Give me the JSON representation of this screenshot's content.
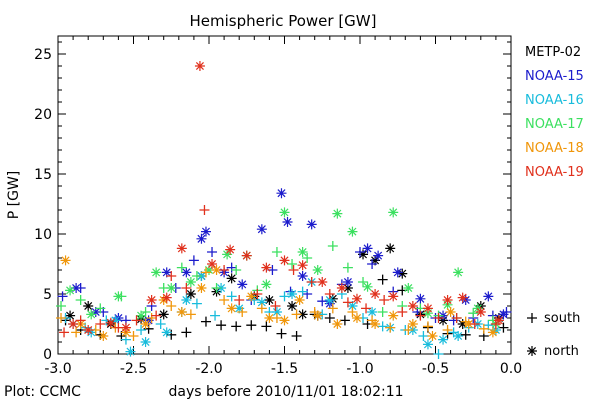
{
  "chart_data": {
    "type": "scatter",
    "title": "Hemispheric Power [GW]",
    "xlabel": "days before 2010/11/01 18:02:11",
    "ylabel": "P [GW]",
    "footer": "Plot: CCMC",
    "xlim": [
      -3.0,
      0.0
    ],
    "ylim": [
      0,
      26.5
    ],
    "x_ticks": [
      "-3.0",
      "-2.5",
      "-2.0",
      "-1.5",
      "-1.0",
      "-0.5",
      "0.0"
    ],
    "y_ticks": [
      "0",
      "5",
      "10",
      "15",
      "20",
      "25"
    ],
    "grid": false,
    "legend_position": "right",
    "marker_legend": [
      {
        "symbol": "+",
        "label": "south"
      },
      {
        "symbol": "*",
        "label": "north"
      }
    ],
    "series": [
      {
        "name": "METP-02",
        "color": "#000000",
        "north": [
          [
            -2.92,
            3.2
          ],
          [
            -2.8,
            4.0
          ],
          [
            -2.65,
            2.5
          ],
          [
            -2.45,
            2.9
          ],
          [
            -2.3,
            3.3
          ],
          [
            -2.12,
            5.0
          ],
          [
            -2.05,
            6.5
          ],
          [
            -1.95,
            5.2
          ],
          [
            -1.85,
            6.3
          ],
          [
            -1.7,
            4.8
          ],
          [
            -1.6,
            4.5
          ],
          [
            -1.45,
            4.0
          ],
          [
            -1.38,
            3.3
          ],
          [
            -1.28,
            3.2
          ],
          [
            -1.18,
            4.6
          ],
          [
            -1.08,
            5.5
          ],
          [
            -0.98,
            8.3
          ],
          [
            -0.9,
            7.8
          ],
          [
            -0.8,
            8.8
          ],
          [
            -0.72,
            6.7
          ],
          [
            -0.6,
            3.3
          ],
          [
            -0.45,
            2.8
          ],
          [
            -0.32,
            2.5
          ],
          [
            -0.2,
            4.0
          ],
          [
            -0.08,
            3.0
          ]
        ],
        "south": [
          [
            -2.95,
            2.8
          ],
          [
            -2.85,
            2.0
          ],
          [
            -2.72,
            1.6
          ],
          [
            -2.58,
            1.5
          ],
          [
            -2.4,
            2.1
          ],
          [
            -2.25,
            1.6
          ],
          [
            -2.15,
            1.8
          ],
          [
            -2.02,
            2.7
          ],
          [
            -1.92,
            2.4
          ],
          [
            -1.82,
            2.3
          ],
          [
            -1.72,
            2.4
          ],
          [
            -1.62,
            2.3
          ],
          [
            -1.52,
            1.7
          ],
          [
            -1.42,
            1.5
          ],
          [
            -1.3,
            3.3
          ],
          [
            -1.2,
            3.0
          ],
          [
            -1.1,
            2.8
          ],
          [
            -0.95,
            2.5
          ],
          [
            -0.85,
            6.2
          ],
          [
            -0.72,
            5.3
          ],
          [
            -0.55,
            2.2
          ],
          [
            -0.42,
            1.7
          ],
          [
            -0.3,
            1.6
          ],
          [
            -0.18,
            1.5
          ],
          [
            -0.05,
            2.2
          ]
        ]
      },
      {
        "name": "NOAA-15",
        "color": "#1c1ccc",
        "north": [
          [
            -2.88,
            5.5
          ],
          [
            -2.75,
            3.5
          ],
          [
            -2.6,
            3.0
          ],
          [
            -2.4,
            2.8
          ],
          [
            -2.28,
            6.8
          ],
          [
            -2.15,
            6.8
          ],
          [
            -2.05,
            9.6
          ],
          [
            -2.02,
            10.2
          ],
          [
            -1.9,
            6.8
          ],
          [
            -1.78,
            5.8
          ],
          [
            -1.65,
            10.4
          ],
          [
            -1.52,
            13.4
          ],
          [
            -1.48,
            11.0
          ],
          [
            -1.38,
            6.5
          ],
          [
            -1.32,
            10.8
          ],
          [
            -1.2,
            4.2
          ],
          [
            -1.08,
            6.0
          ],
          [
            -0.95,
            8.8
          ],
          [
            -0.88,
            8.2
          ],
          [
            -0.75,
            6.8
          ],
          [
            -0.6,
            4.6
          ],
          [
            -0.45,
            3.2
          ],
          [
            -0.3,
            4.5
          ],
          [
            -0.15,
            4.8
          ],
          [
            -0.05,
            3.3
          ]
        ],
        "south": [
          [
            -2.97,
            4.8
          ],
          [
            -2.85,
            5.5
          ],
          [
            -2.7,
            3.5
          ],
          [
            -2.55,
            2.8
          ],
          [
            -2.38,
            4.0
          ],
          [
            -2.22,
            5.5
          ],
          [
            -2.1,
            7.8
          ],
          [
            -1.98,
            8.5
          ],
          [
            -1.85,
            7.2
          ],
          [
            -1.72,
            4.5
          ],
          [
            -1.58,
            7.0
          ],
          [
            -1.46,
            5.2
          ],
          [
            -1.35,
            5.0
          ],
          [
            -1.25,
            4.4
          ],
          [
            -1.12,
            5.8
          ],
          [
            -1.0,
            8.5
          ],
          [
            -0.92,
            7.5
          ],
          [
            -0.78,
            5.2
          ],
          [
            -0.62,
            3.5
          ],
          [
            -0.5,
            3.0
          ],
          [
            -0.38,
            2.8
          ],
          [
            -0.25,
            3.0
          ],
          [
            -0.12,
            3.2
          ],
          [
            -0.03,
            3.5
          ]
        ]
      },
      {
        "name": "NOAA-16",
        "color": "#18bcdc",
        "north": [
          [
            -2.9,
            2.5
          ],
          [
            -2.78,
            1.8
          ],
          [
            -2.62,
            2.8
          ],
          [
            -2.52,
            0.2
          ],
          [
            -2.42,
            1.0
          ],
          [
            -2.28,
            1.8
          ],
          [
            -2.15,
            4.5
          ],
          [
            -2.05,
            6.5
          ],
          [
            -1.92,
            5.5
          ],
          [
            -1.8,
            3.8
          ],
          [
            -1.65,
            4.3
          ],
          [
            -1.55,
            3.5
          ],
          [
            -1.45,
            5.0
          ],
          [
            -1.32,
            6.0
          ],
          [
            -1.2,
            4.5
          ],
          [
            -1.05,
            4.0
          ],
          [
            -0.92,
            3.5
          ],
          [
            -0.8,
            2.2
          ],
          [
            -0.65,
            2.0
          ],
          [
            -0.55,
            0.8
          ],
          [
            -0.45,
            1.2
          ],
          [
            -0.35,
            1.5
          ],
          [
            -0.22,
            2.5
          ],
          [
            -0.1,
            2.0
          ]
        ],
        "south": [
          [
            -2.95,
            3.0
          ],
          [
            -2.82,
            2.2
          ],
          [
            -2.68,
            2.8
          ],
          [
            -2.55,
            1.2
          ],
          [
            -2.45,
            2.0
          ],
          [
            -2.32,
            2.5
          ],
          [
            -2.18,
            3.5
          ],
          [
            -2.08,
            4.2
          ],
          [
            -1.96,
            3.2
          ],
          [
            -1.85,
            4.8
          ],
          [
            -1.7,
            4.5
          ],
          [
            -1.6,
            3.5
          ],
          [
            -1.5,
            4.8
          ],
          [
            -1.38,
            5.2
          ],
          [
            -1.25,
            3.3
          ],
          [
            -1.12,
            5.0
          ],
          [
            -0.98,
            3.0
          ],
          [
            -0.85,
            2.3
          ],
          [
            -0.7,
            2.0
          ],
          [
            -0.58,
            1.5
          ],
          [
            -0.48,
            0.0
          ],
          [
            -0.38,
            1.8
          ],
          [
            -0.28,
            2.2
          ],
          [
            -0.15,
            2.4
          ]
        ]
      },
      {
        "name": "NOAA-17",
        "color": "#3ce060",
        "north": [
          [
            -2.92,
            5.3
          ],
          [
            -2.78,
            3.3
          ],
          [
            -2.6,
            4.8
          ],
          [
            -2.45,
            3.2
          ],
          [
            -2.35,
            6.8
          ],
          [
            -2.25,
            5.5
          ],
          [
            -2.12,
            6.0
          ],
          [
            -2.0,
            7.0
          ],
          [
            -1.88,
            8.3
          ],
          [
            -1.75,
            8.2
          ],
          [
            -1.62,
            5.8
          ],
          [
            -1.5,
            11.8
          ],
          [
            -1.38,
            8.5
          ],
          [
            -1.28,
            7.0
          ],
          [
            -1.15,
            11.7
          ],
          [
            -1.05,
            10.2
          ],
          [
            -0.95,
            5.6
          ],
          [
            -0.78,
            11.8
          ],
          [
            -0.68,
            5.5
          ],
          [
            -0.55,
            3.4
          ],
          [
            -0.42,
            4.1
          ],
          [
            -0.35,
            6.8
          ],
          [
            -0.22,
            3.8
          ],
          [
            -0.1,
            2.5
          ]
        ],
        "south": [
          [
            -2.98,
            4.0
          ],
          [
            -2.85,
            4.5
          ],
          [
            -2.72,
            3.8
          ],
          [
            -2.58,
            4.8
          ],
          [
            -2.42,
            3.5
          ],
          [
            -2.3,
            5.5
          ],
          [
            -2.18,
            7.2
          ],
          [
            -2.08,
            6.5
          ],
          [
            -1.95,
            5.5
          ],
          [
            -1.82,
            7.0
          ],
          [
            -1.68,
            5.3
          ],
          [
            -1.55,
            8.5
          ],
          [
            -1.45,
            7.5
          ],
          [
            -1.35,
            8.0
          ],
          [
            -1.18,
            9.0
          ],
          [
            -1.08,
            7.2
          ],
          [
            -0.98,
            6.0
          ],
          [
            -0.85,
            3.5
          ],
          [
            -0.72,
            4.0
          ],
          [
            -0.6,
            3.8
          ],
          [
            -0.48,
            3.2
          ],
          [
            -0.36,
            3.0
          ],
          [
            -0.25,
            3.4
          ],
          [
            -0.12,
            2.8
          ]
        ]
      },
      {
        "name": "NOAA-18",
        "color": "#f0960a",
        "north": [
          [
            -2.95,
            7.8
          ],
          [
            -2.85,
            2.5
          ],
          [
            -2.7,
            1.5
          ],
          [
            -2.55,
            1.8
          ],
          [
            -2.42,
            2.5
          ],
          [
            -2.3,
            4.5
          ],
          [
            -2.18,
            3.5
          ],
          [
            -2.05,
            5.5
          ],
          [
            -1.95,
            7.0
          ],
          [
            -1.85,
            3.8
          ],
          [
            -1.72,
            4.8
          ],
          [
            -1.6,
            3.0
          ],
          [
            -1.5,
            2.8
          ],
          [
            -1.4,
            4.5
          ],
          [
            -1.28,
            3.2
          ],
          [
            -1.15,
            2.5
          ],
          [
            -1.02,
            3.0
          ],
          [
            -0.9,
            2.5
          ],
          [
            -0.78,
            3.2
          ],
          [
            -0.65,
            2.5
          ],
          [
            -0.52,
            1.5
          ],
          [
            -0.4,
            3.5
          ],
          [
            -0.28,
            2.5
          ],
          [
            -0.12,
            1.8
          ]
        ],
        "south": [
          [
            -2.98,
            3.0
          ],
          [
            -2.88,
            1.8
          ],
          [
            -2.75,
            2.0
          ],
          [
            -2.62,
            2.2
          ],
          [
            -2.5,
            1.5
          ],
          [
            -2.38,
            3.0
          ],
          [
            -2.25,
            4.0
          ],
          [
            -2.12,
            3.3
          ],
          [
            -2.02,
            6.8
          ],
          [
            -1.9,
            4.5
          ],
          [
            -1.78,
            3.5
          ],
          [
            -1.65,
            3.8
          ],
          [
            -1.55,
            3.0
          ],
          [
            -1.42,
            3.3
          ],
          [
            -1.3,
            3.5
          ],
          [
            -1.18,
            3.8
          ],
          [
            -1.05,
            3.5
          ],
          [
            -0.92,
            2.8
          ],
          [
            -0.8,
            2.2
          ],
          [
            -0.68,
            2.0
          ],
          [
            -0.55,
            2.3
          ],
          [
            -0.42,
            2.0
          ],
          [
            -0.3,
            2.7
          ],
          [
            -0.18,
            2.1
          ]
        ]
      },
      {
        "name": "NOAA-19",
        "color": "#e0301c",
        "north": [
          [
            -2.9,
            2.5
          ],
          [
            -2.8,
            2.0
          ],
          [
            -2.65,
            2.6
          ],
          [
            -2.55,
            2.2
          ],
          [
            -2.38,
            4.5
          ],
          [
            -2.28,
            4.7
          ],
          [
            -2.18,
            8.8
          ],
          [
            -2.06,
            24.0
          ],
          [
            -1.98,
            7.5
          ],
          [
            -1.86,
            8.7
          ],
          [
            -1.75,
            8.2
          ],
          [
            -1.62,
            7.2
          ],
          [
            -1.5,
            7.8
          ],
          [
            -1.38,
            7.4
          ],
          [
            -1.25,
            6.0
          ],
          [
            -1.12,
            5.5
          ],
          [
            -1.02,
            4.6
          ],
          [
            -0.9,
            5.0
          ],
          [
            -0.78,
            4.8
          ],
          [
            -0.65,
            4.0
          ],
          [
            -0.55,
            3.8
          ],
          [
            -0.42,
            4.5
          ],
          [
            -0.32,
            4.7
          ],
          [
            -0.2,
            3.5
          ],
          [
            -0.08,
            2.8
          ]
        ],
        "south": [
          [
            -2.96,
            1.8
          ],
          [
            -2.85,
            2.8
          ],
          [
            -2.72,
            2.5
          ],
          [
            -2.6,
            2.2
          ],
          [
            -2.48,
            2.8
          ],
          [
            -2.35,
            3.2
          ],
          [
            -2.25,
            6.5
          ],
          [
            -2.15,
            5.5
          ],
          [
            -2.03,
            12.0
          ],
          [
            -1.9,
            7.0
          ],
          [
            -1.8,
            4.5
          ],
          [
            -1.68,
            5.0
          ],
          [
            -1.56,
            4.0
          ],
          [
            -1.44,
            7.0
          ],
          [
            -1.32,
            6.0
          ],
          [
            -1.2,
            5.0
          ],
          [
            -1.08,
            4.3
          ],
          [
            -0.96,
            3.8
          ],
          [
            -0.84,
            4.5
          ],
          [
            -0.72,
            3.5
          ],
          [
            -0.6,
            3.2
          ],
          [
            -0.48,
            3.0
          ],
          [
            -0.36,
            3.0
          ],
          [
            -0.24,
            2.5
          ],
          [
            -0.1,
            2.5
          ]
        ]
      }
    ]
  }
}
